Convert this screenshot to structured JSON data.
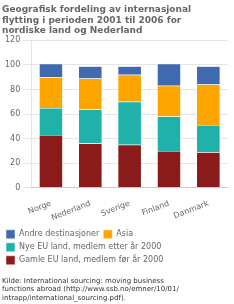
{
  "chart_data": {
    "type": "bar",
    "title": "Geografisk fordeling av internasjonal\nflytting i perioden 2001 til 2006 for\nnordiske land og Nederland",
    "categories": [
      "Norge",
      "Nederland",
      "Sverige",
      "Finland",
      "Danmark"
    ],
    "series": [
      {
        "name": "Gamle EU land, medlem før år 2000",
        "color": "#8B1A1A",
        "values": [
          43,
          36,
          35,
          30,
          29
        ]
      },
      {
        "name": "Nye EU land, medlem etter år 2000",
        "color": "#20B2AA",
        "values": [
          22,
          28,
          35,
          28,
          22
        ]
      },
      {
        "name": "Asia",
        "color": "#FFA500",
        "values": [
          25,
          25,
          22,
          25,
          33
        ]
      },
      {
        "name": "Andre destinasjoner",
        "color": "#4169B0",
        "values": [
          11,
          10,
          7,
          18,
          15
        ]
      }
    ],
    "stacked": true,
    "ylim": [
      0,
      120
    ],
    "yticks": [
      0,
      20,
      40,
      60,
      80,
      100,
      120
    ],
    "grid": true,
    "legend": "bottom",
    "annotations": [
      "Kilde: International sourcing: moving business\nfunctions abroad (http://www.ssb.no/emner/10/01/\nintrapp/international_sourcing.pdf)."
    ]
  }
}
